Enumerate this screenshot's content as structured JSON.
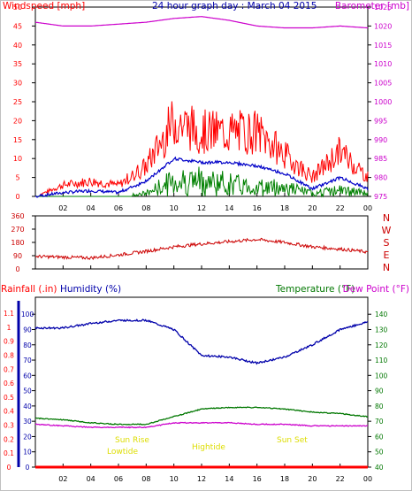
{
  "title": "24 hour graph day : March 04 2015",
  "colors": {
    "wind": "#ff0000",
    "gust": "#ff0000",
    "avgwind": "#0000c8",
    "windband": "#008000",
    "baro": "#cc00cc",
    "dir": "#cc0000",
    "rain": "#ff0000",
    "humidity": "#0000aa",
    "temp": "#007700",
    "dew": "#cc00cc",
    "suntext": "#dddd00",
    "text": "#000000"
  },
  "panel1": {
    "left_label": "Windspeed [mph]",
    "right_label": "Barometer [mb]",
    "left_ticks": [
      "0",
      "5",
      "10",
      "15",
      "20",
      "25",
      "30",
      "35",
      "40",
      "45",
      "50"
    ],
    "right_ticks": [
      "975",
      "980",
      "985",
      "990",
      "995",
      "1000",
      "1005",
      "1010",
      "1015",
      "1020",
      "1025"
    ]
  },
  "panel2": {
    "left_ticks": [
      "0",
      "90",
      "180",
      "270",
      "360"
    ],
    "compass": [
      "N",
      "W",
      "S",
      "E",
      "N"
    ]
  },
  "panel3": {
    "rain_label": "Rainfall (.in)",
    "hum_label": "Humidity (%)",
    "temp_label": "Temperature (°F)",
    "dew_label": "Dew Point (°F)",
    "rain_ticks": [
      "0",
      "0.1",
      "0.2",
      "0.3",
      "0.4",
      "0.5",
      "0.6",
      "0.7",
      "0.8",
      "0.9",
      "1",
      "1.1"
    ],
    "hum_ticks": [
      "0",
      "10",
      "20",
      "30",
      "40",
      "50",
      "60",
      "70",
      "80",
      "90",
      "100"
    ],
    "temp_ticks": [
      "40",
      "50",
      "60",
      "70",
      "80",
      "90",
      "100",
      "110",
      "120",
      "130",
      "140"
    ],
    "annotations": {
      "sunrise": "Sun Rise",
      "lowtide": "Lowtide",
      "hightide": "Hightide",
      "sunset": "Sun Set"
    }
  },
  "x_ticks": [
    "02",
    "04",
    "06",
    "08",
    "10",
    "12",
    "14",
    "16",
    "18",
    "20",
    "22",
    "00"
  ],
  "chart_data": [
    {
      "type": "line",
      "title": "24 hour graph day : March 04 2015",
      "xlabel": "",
      "ylabel": "Windspeed [mph]",
      "x": [
        "00",
        "02",
        "04",
        "06",
        "08",
        "10",
        "12",
        "14",
        "16",
        "18",
        "20",
        "22",
        "00"
      ],
      "ylim": [
        0,
        50
      ],
      "y2label": "Barometer [mb]",
      "y2lim": [
        975,
        1025
      ],
      "series": [
        {
          "values": [
            0,
            3,
            4,
            3,
            8,
            20,
            17,
            17,
            17,
            11,
            5,
            12,
            5
          ]
        },
        {
          "values": [
            0,
            1,
            1.5,
            1,
            4,
            10,
            9,
            9,
            8,
            6,
            2,
            5,
            2
          ]
        },
        {
          "values": [
            0,
            0,
            0,
            0,
            1,
            5,
            5,
            4,
            3,
            3,
            1,
            2,
            1
          ]
        },
        {
          "values": [
            1021,
            1020,
            1020,
            1020.5,
            1021,
            1022,
            1022.5,
            1021.5,
            1020,
            1019.5,
            1019.5,
            1020,
            1019.5
          ]
        }
      ]
    },
    {
      "type": "scatter",
      "xlabel": "",
      "ylabel": "",
      "x": [
        "00",
        "02",
        "04",
        "06",
        "08",
        "10",
        "12",
        "14",
        "16",
        "18",
        "20",
        "22",
        "00"
      ],
      "ylim": [
        0,
        360
      ],
      "series": [
        {
          "values": [
            85,
            80,
            75,
            95,
            120,
            150,
            170,
            185,
            200,
            180,
            150,
            135,
            115
          ]
        }
      ]
    },
    {
      "type": "line",
      "xlabel": "",
      "ylabel": "Humidity (%)",
      "x": [
        "00",
        "02",
        "04",
        "06",
        "08",
        "10",
        "12",
        "14",
        "16",
        "18",
        "20",
        "22",
        "00"
      ],
      "ylim": [
        0,
        100
      ],
      "y2lim": [
        40,
        140
      ],
      "series": [
        {
          "values": [
            91,
            91,
            94,
            96,
            96,
            90,
            73,
            72,
            68,
            72,
            80,
            90,
            95
          ]
        },
        {
          "values": [
            72,
            71,
            69,
            68,
            68,
            73,
            78,
            79,
            79,
            78,
            76,
            75,
            73
          ]
        },
        {
          "values": [
            68,
            67,
            66,
            66,
            66,
            69,
            69,
            69,
            68,
            68,
            67,
            67,
            67
          ]
        }
      ]
    }
  ]
}
